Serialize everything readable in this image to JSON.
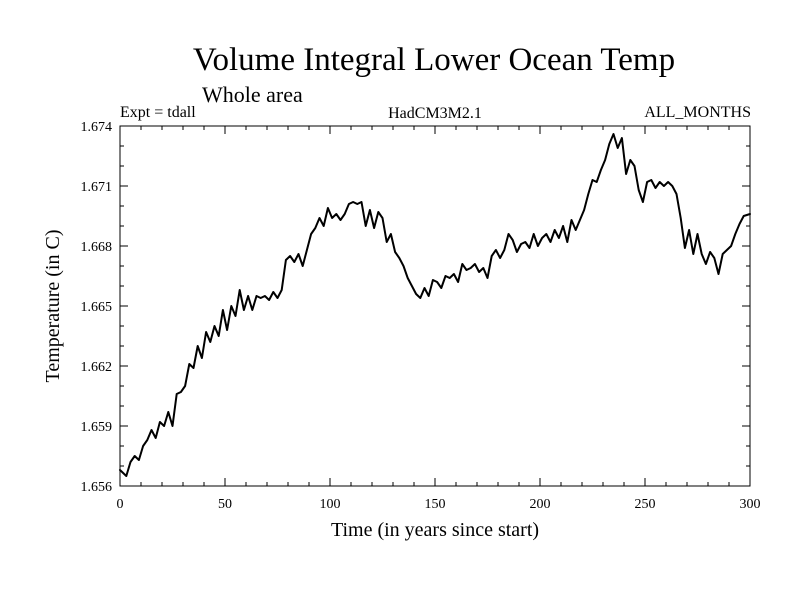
{
  "chart_data": {
    "type": "line",
    "title": "Volume Integral Lower Ocean Temp",
    "subtitle": "Whole area",
    "expt_label": "Expt = tdall",
    "model_label": "HadCM3M2.1",
    "months_label": "ALL_MONTHS",
    "xlabel": "Time (in years since start)",
    "ylabel": "Temperature (in C)",
    "xlim": [
      0,
      300
    ],
    "ylim": [
      1.656,
      1.674
    ],
    "x_ticks": [
      0,
      50,
      100,
      150,
      200,
      250,
      300
    ],
    "x_tick_labels": [
      "0",
      "50",
      "100",
      "150",
      "200",
      "250",
      "300"
    ],
    "y_ticks": [
      1.656,
      1.659,
      1.662,
      1.665,
      1.668,
      1.671,
      1.674
    ],
    "y_tick_labels": [
      "1.656",
      "1.659",
      "1.662",
      "1.665",
      "1.668",
      "1.671",
      "1.674"
    ],
    "line_color": "#000000",
    "series": [
      {
        "name": "Volume Integral Lower Ocean Temp",
        "x": [
          0,
          3,
          5,
          7,
          9,
          11,
          13,
          15,
          17,
          19,
          21,
          23,
          25,
          27,
          29,
          31,
          33,
          35,
          37,
          39,
          41,
          43,
          45,
          47,
          49,
          51,
          53,
          55,
          57,
          59,
          61,
          63,
          65,
          67,
          69,
          71,
          73,
          75,
          77,
          79,
          81,
          83,
          85,
          87,
          89,
          91,
          93,
          95,
          97,
          99,
          101,
          103,
          105,
          107,
          109,
          111,
          113,
          115,
          117,
          119,
          121,
          123,
          125,
          127,
          129,
          131,
          133,
          135,
          137,
          139,
          141,
          143,
          145,
          147,
          149,
          151,
          153,
          155,
          157,
          159,
          161,
          163,
          165,
          167,
          169,
          171,
          173,
          175,
          177,
          179,
          181,
          183,
          185,
          187,
          189,
          191,
          193,
          195,
          197,
          199,
          201,
          203,
          205,
          207,
          209,
          211,
          213,
          215,
          217,
          219,
          221,
          223,
          225,
          227,
          229,
          231,
          233,
          235,
          237,
          239,
          241,
          243,
          245,
          247,
          249,
          251,
          253,
          255,
          257,
          259,
          261,
          263,
          265,
          267,
          269,
          271,
          273,
          275,
          277,
          279,
          281,
          283,
          285,
          287,
          289,
          291,
          293,
          295,
          297,
          300
        ],
        "values": [
          1.6568,
          1.6565,
          1.6572,
          1.6575,
          1.6573,
          1.658,
          1.6583,
          1.6588,
          1.6584,
          1.6592,
          1.659,
          1.6597,
          1.659,
          1.6606,
          1.6607,
          1.661,
          1.6621,
          1.6619,
          1.663,
          1.6624,
          1.6637,
          1.6632,
          1.664,
          1.6635,
          1.6648,
          1.6638,
          1.665,
          1.6645,
          1.6658,
          1.6648,
          1.6655,
          1.6648,
          1.6655,
          1.6654,
          1.6655,
          1.6653,
          1.6657,
          1.6654,
          1.6658,
          1.6673,
          1.6675,
          1.6672,
          1.6676,
          1.667,
          1.6678,
          1.6686,
          1.6689,
          1.6694,
          1.669,
          1.6699,
          1.6694,
          1.6696,
          1.6693,
          1.6696,
          1.6701,
          1.6702,
          1.6701,
          1.6702,
          1.669,
          1.6698,
          1.6689,
          1.6697,
          1.6694,
          1.6682,
          1.6686,
          1.6677,
          1.6674,
          1.667,
          1.6664,
          1.666,
          1.6656,
          1.6654,
          1.6659,
          1.6655,
          1.6663,
          1.6662,
          1.6659,
          1.6665,
          1.6664,
          1.6666,
          1.6662,
          1.6671,
          1.6668,
          1.6669,
          1.6671,
          1.6667,
          1.6669,
          1.6664,
          1.6675,
          1.6678,
          1.6674,
          1.6678,
          1.6686,
          1.6683,
          1.6677,
          1.6681,
          1.6682,
          1.6679,
          1.6686,
          1.668,
          1.6684,
          1.6686,
          1.6682,
          1.6688,
          1.6684,
          1.669,
          1.6682,
          1.6693,
          1.6688,
          1.6693,
          1.6698,
          1.6706,
          1.6713,
          1.6712,
          1.6718,
          1.6723,
          1.6731,
          1.6736,
          1.6729,
          1.6734,
          1.6716,
          1.6723,
          1.672,
          1.6708,
          1.6702,
          1.6712,
          1.6713,
          1.6709,
          1.6712,
          1.671,
          1.6712,
          1.671,
          1.6706,
          1.6694,
          1.6679,
          1.6688,
          1.6676,
          1.6686,
          1.6676,
          1.6671,
          1.6677,
          1.6674,
          1.6666,
          1.6676,
          1.6678,
          1.668,
          1.6686,
          1.6691,
          1.6695,
          1.6696
        ]
      }
    ]
  }
}
